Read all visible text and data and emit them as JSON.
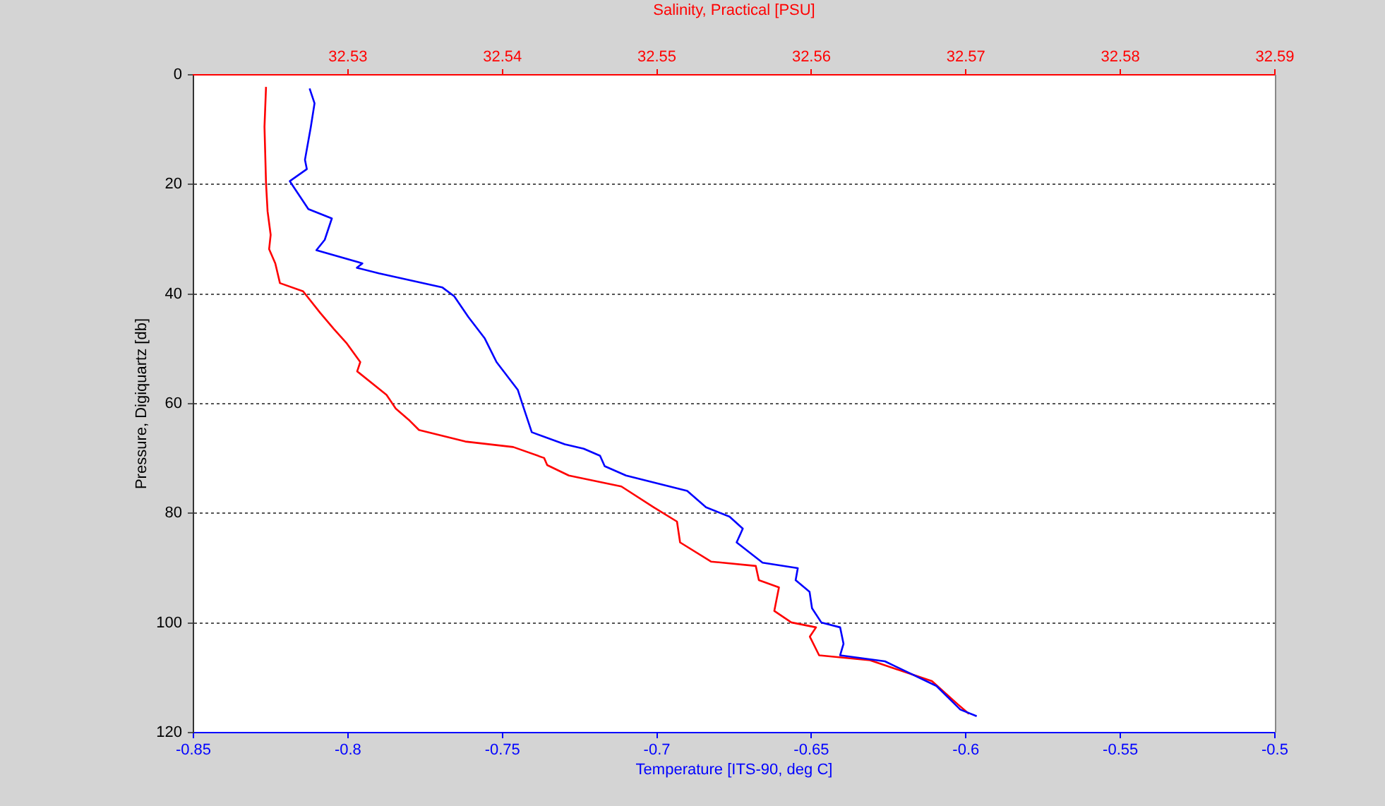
{
  "chart_data": {
    "type": "line",
    "xlabel": "Temperature [ITS-90, deg C]",
    "x2label": "Salinity, Practical [PSU]",
    "ylabel": "Pressure, Digiquartz [db]",
    "xlim": [
      -0.85,
      -0.5
    ],
    "xticks": [
      -0.85,
      -0.8,
      -0.75,
      -0.7,
      -0.65,
      -0.6,
      -0.55,
      -0.5
    ],
    "x2lim": [
      32.52,
      32.59
    ],
    "x2ticks": [
      32.53,
      32.54,
      32.55,
      32.56,
      32.57,
      32.58,
      32.59
    ],
    "ylim": [
      120,
      0
    ],
    "yticks": [
      0,
      20,
      40,
      60,
      80,
      100,
      120
    ],
    "grid": "y",
    "marker": "none",
    "line_style": "solid",
    "series": [
      {
        "color": "#0000ff",
        "x": [
          -0.8124,
          -0.8108,
          -0.812,
          -0.8139,
          -0.8133,
          -0.8188,
          -0.8174,
          -0.8128,
          -0.8052,
          -0.8075,
          -0.8102,
          -0.7953,
          -0.7971,
          -0.79,
          -0.7694,
          -0.7656,
          -0.761,
          -0.7557,
          -0.7519,
          -0.745,
          -0.7435,
          -0.7405,
          -0.7298,
          -0.7237,
          -0.7184,
          -0.7169,
          -0.71,
          -0.6902,
          -0.6841,
          -0.6765,
          -0.6722,
          -0.6742,
          -0.6658,
          -0.6544,
          -0.6551,
          -0.6506,
          -0.6498,
          -0.6468,
          -0.6407,
          -0.6396,
          -0.6407,
          -0.6262,
          -0.6095,
          -0.6018,
          -0.5965
        ],
        "values": [
          2.5,
          5.2,
          9.5,
          15.5,
          17.2,
          19.4,
          20.6,
          24.5,
          26.2,
          30.1,
          32,
          34.4,
          35.2,
          36.2,
          38.8,
          40.4,
          44.2,
          48.1,
          52.4,
          57.5,
          60.1,
          65.2,
          67.4,
          68.2,
          69.5,
          71.4,
          73.1,
          75.9,
          78.9,
          80.6,
          82.8,
          85.3,
          89,
          90,
          92.2,
          94.3,
          97.3,
          99.9,
          100.8,
          103.8,
          105.9,
          107,
          111.5,
          115.8,
          117
        ]
      },
      {
        "color": "#ff0000",
        "axis": "x2",
        "x": [
          32.5247,
          32.5246,
          32.5247,
          32.5248,
          32.525,
          32.5249,
          32.5253,
          32.5256,
          32.5271,
          32.5282,
          32.5291,
          32.5299,
          32.5308,
          32.5306,
          32.5325,
          32.5331,
          32.534,
          32.5346,
          32.5376,
          32.5407,
          32.5427,
          32.5429,
          32.5443,
          32.5477,
          32.5498,
          32.5513,
          32.5515,
          32.5535,
          32.5564,
          32.5566,
          32.5579,
          32.5576,
          32.5587,
          32.5603,
          32.5599,
          32.5605,
          32.5638,
          32.5678,
          32.5695,
          32.5702
        ],
        "values": [
          2.2,
          9.5,
          19.8,
          24.9,
          29.2,
          31.8,
          34.4,
          38,
          39.5,
          43.4,
          46.4,
          48.9,
          52.4,
          54.1,
          58.4,
          60.9,
          63.1,
          64.8,
          66.9,
          67.9,
          69.9,
          71.2,
          73.1,
          75.1,
          78.9,
          81.5,
          85.3,
          88.8,
          89.6,
          92.2,
          93.5,
          97.8,
          99.9,
          100.8,
          102.5,
          105.9,
          106.8,
          110.6,
          114.9,
          116.6
        ]
      }
    ]
  }
}
